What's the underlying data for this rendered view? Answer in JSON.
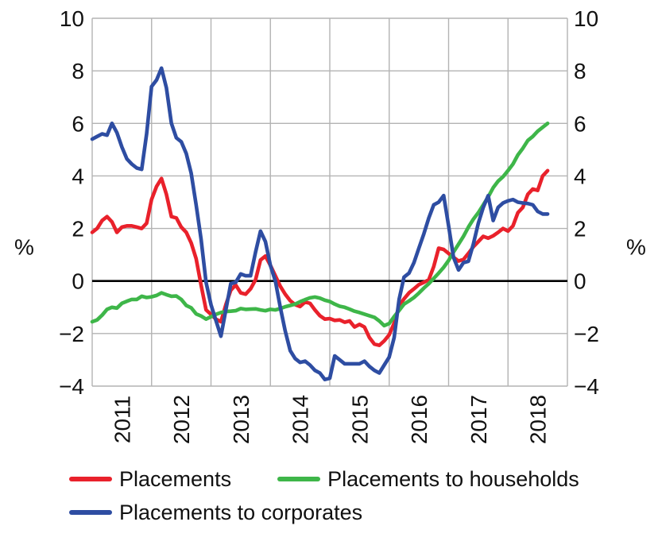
{
  "figure": {
    "background": "#ffffff",
    "text_color": "#111111",
    "gridline_color": "#b3b3b3",
    "zero_line_color": "#000000"
  },
  "legend": {
    "items": [
      {
        "label": "Placements",
        "color": "#e9212b"
      },
      {
        "label": "Placements to households",
        "color": "#3eb649"
      },
      {
        "label": "Placements to corporates",
        "color": "#2e4da2"
      }
    ]
  },
  "chart_data": {
    "type": "line",
    "title": "",
    "xlabel": "",
    "ylabel_left": "%",
    "ylabel_right": "%",
    "grid": true,
    "legend_position": "bottom-left",
    "ylim": [
      -4,
      10
    ],
    "xlim": [
      2011.0,
      2019.0
    ],
    "y_ticks": [
      10,
      8,
      6,
      4,
      2,
      0,
      -2,
      -4
    ],
    "y_tick_labels": [
      "10",
      "8",
      "6",
      "4",
      "2",
      "0",
      "−2",
      "−4"
    ],
    "zero_line": 0,
    "x_gridlines": [
      2011,
      2012,
      2013,
      2014,
      2015,
      2016,
      2017,
      2018,
      2019
    ],
    "x_tick_labels": [
      "2011",
      "2012",
      "2013",
      "2014",
      "2015",
      "2016",
      "2017",
      "2018"
    ],
    "x_tick_label_centers": [
      2011.5,
      2012.5,
      2013.5,
      2014.5,
      2015.5,
      2016.5,
      2017.5,
      2018.5
    ],
    "x_unit": "decimal_year",
    "x_start": 2011.0,
    "x_step": 0.083333,
    "series": [
      {
        "name": "Placements",
        "color": "#e9212b",
        "values": [
          1.85,
          2.0,
          2.3,
          2.45,
          2.25,
          1.85,
          2.05,
          2.1,
          2.1,
          2.05,
          2.0,
          2.2,
          3.1,
          3.6,
          3.9,
          3.3,
          2.45,
          2.4,
          2.05,
          1.85,
          1.45,
          0.85,
          -0.15,
          -1.1,
          -1.27,
          -1.45,
          -1.55,
          -0.9,
          -0.35,
          -0.15,
          -0.45,
          -0.5,
          -0.3,
          0.05,
          0.8,
          0.95,
          0.6,
          0.2,
          -0.2,
          -0.5,
          -0.75,
          -0.9,
          -0.97,
          -0.8,
          -0.85,
          -1.1,
          -1.32,
          -1.45,
          -1.43,
          -1.5,
          -1.48,
          -1.57,
          -1.52,
          -1.75,
          -1.65,
          -1.75,
          -2.15,
          -2.4,
          -2.45,
          -2.28,
          -2.05,
          -1.6,
          -0.95,
          -0.68,
          -0.45,
          -0.3,
          -0.14,
          -0.05,
          0.05,
          0.55,
          1.25,
          1.2,
          1.05,
          0.9,
          0.76,
          0.82,
          1.05,
          1.3,
          1.5,
          1.7,
          1.63,
          1.72,
          1.85,
          2.0,
          1.9,
          2.1,
          2.6,
          2.8,
          3.3,
          3.5,
          3.45,
          4.0,
          4.2
        ]
      },
      {
        "name": "Placements to households",
        "color": "#3eb649",
        "values": [
          -1.55,
          -1.48,
          -1.3,
          -1.08,
          -1.0,
          -1.03,
          -0.85,
          -0.77,
          -0.7,
          -0.7,
          -0.58,
          -0.63,
          -0.6,
          -0.55,
          -0.45,
          -0.52,
          -0.58,
          -0.57,
          -0.7,
          -0.93,
          -1.02,
          -1.25,
          -1.33,
          -1.45,
          -1.36,
          -1.27,
          -1.2,
          -1.16,
          -1.15,
          -1.13,
          -1.05,
          -1.08,
          -1.07,
          -1.06,
          -1.1,
          -1.13,
          -1.08,
          -1.1,
          -1.05,
          -0.98,
          -0.93,
          -0.88,
          -0.79,
          -0.71,
          -0.64,
          -0.61,
          -0.65,
          -0.73,
          -0.78,
          -0.88,
          -0.96,
          -1.0,
          -1.07,
          -1.15,
          -1.2,
          -1.26,
          -1.32,
          -1.38,
          -1.52,
          -1.7,
          -1.62,
          -1.35,
          -1.12,
          -0.88,
          -0.76,
          -0.63,
          -0.46,
          -0.27,
          -0.1,
          0.1,
          0.3,
          0.52,
          0.78,
          1.1,
          1.4,
          1.7,
          2.05,
          2.35,
          2.6,
          2.9,
          3.2,
          3.55,
          3.8,
          3.97,
          4.2,
          4.45,
          4.8,
          5.05,
          5.35,
          5.5,
          5.7,
          5.85,
          6.0
        ]
      },
      {
        "name": "Placements to corporates",
        "color": "#2e4da2",
        "values": [
          5.4,
          5.5,
          5.6,
          5.55,
          6.0,
          5.65,
          5.1,
          4.65,
          4.45,
          4.3,
          4.25,
          5.6,
          7.4,
          7.65,
          8.1,
          7.35,
          6.0,
          5.45,
          5.3,
          4.85,
          4.1,
          2.9,
          1.6,
          -0.05,
          -0.9,
          -1.5,
          -2.1,
          -1.1,
          -0.1,
          -0.05,
          0.27,
          0.2,
          0.2,
          1.1,
          1.9,
          1.5,
          0.6,
          0.0,
          -1.0,
          -1.9,
          -2.65,
          -2.95,
          -3.1,
          -3.05,
          -3.2,
          -3.4,
          -3.5,
          -3.75,
          -3.7,
          -2.85,
          -3.0,
          -3.15,
          -3.15,
          -3.15,
          -3.15,
          -3.05,
          -3.25,
          -3.4,
          -3.5,
          -3.2,
          -2.9,
          -2.15,
          -0.7,
          0.15,
          0.3,
          0.7,
          1.25,
          1.8,
          2.4,
          2.9,
          3.0,
          3.25,
          2.1,
          0.9,
          0.42,
          0.7,
          0.75,
          1.4,
          2.2,
          2.8,
          3.25,
          2.3,
          2.8,
          2.97,
          3.05,
          3.1,
          3.0,
          2.97,
          2.95,
          2.9,
          2.65,
          2.55,
          2.55
        ]
      }
    ]
  }
}
